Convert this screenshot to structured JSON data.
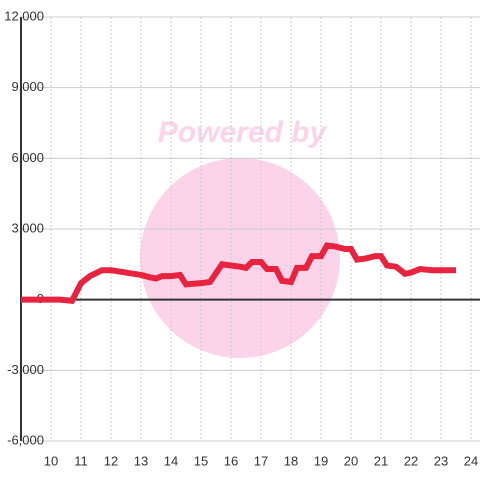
{
  "chart_data": {
    "type": "line",
    "watermark": "Powered by",
    "x": [
      9,
      9.5,
      10,
      10.3,
      10.7,
      11,
      11.3,
      11.7,
      12,
      12.5,
      13,
      13.3,
      13.5,
      13.7,
      14,
      14.3,
      14.5,
      15,
      15.3,
      15.7,
      16,
      16.3,
      16.5,
      16.7,
      17,
      17.2,
      17.5,
      17.7,
      18,
      18.2,
      18.5,
      18.7,
      19,
      19.2,
      19.5,
      19.8,
      20,
      20.2,
      20.5,
      20.8,
      21,
      21.2,
      21.5,
      21.8,
      22,
      22.3,
      22.7,
      23,
      23.5
    ],
    "series": [
      {
        "color": "#e8233f",
        "values": [
          0,
          0,
          0,
          0,
          -50,
          700,
          1000,
          1250,
          1250,
          1150,
          1050,
          950,
          900,
          1000,
          1000,
          1050,
          650,
          700,
          750,
          1500,
          1450,
          1400,
          1350,
          1600,
          1600,
          1300,
          1300,
          800,
          750,
          1350,
          1350,
          1850,
          1850,
          2300,
          2250,
          2150,
          2150,
          1700,
          1750,
          1850,
          1850,
          1450,
          1400,
          1100,
          1150,
          1300,
          1250,
          1250,
          1250
        ]
      }
    ],
    "xlim": [
      9,
      24.3
    ],
    "xticks": [
      10,
      11,
      12,
      13,
      14,
      15,
      16,
      17,
      18,
      19,
      20,
      21,
      22,
      23,
      24
    ],
    "ylim": [
      -6000,
      12000
    ],
    "yticks": [
      {
        "value": -6000,
        "label": "-6,000"
      },
      {
        "value": -3000,
        "label": "-3,000"
      },
      0,
      {
        "value": 3000,
        "label": "3,000"
      },
      {
        "value": 6000,
        "label": "6,000"
      },
      {
        "value": 9000,
        "label": "9,000"
      },
      {
        "value": 12000,
        "label": "12,000"
      }
    ],
    "grid": true
  }
}
